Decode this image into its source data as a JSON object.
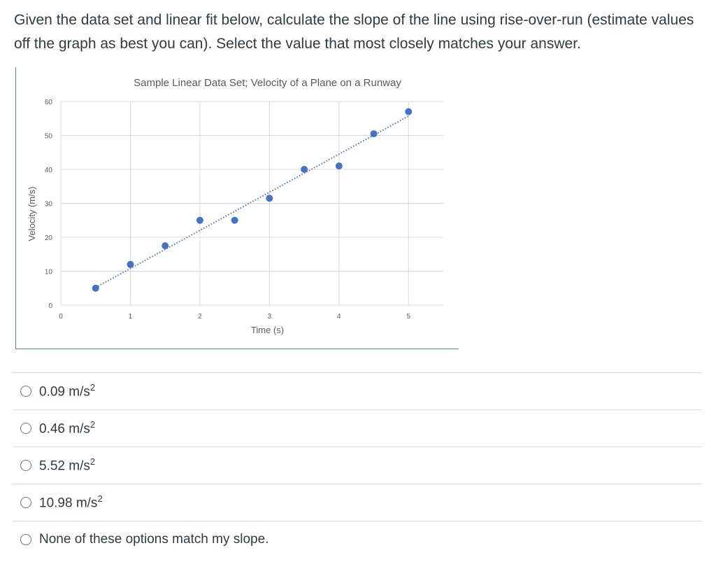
{
  "question": {
    "text": "Given the data set and linear fit below, calculate the slope of the line using rise-over-run (estimate values off the graph as best you can). Select the value that most closely matches your answer."
  },
  "chart_data": {
    "type": "scatter",
    "title": "Sample Linear Data Set; Velocity of a Plane on a Runway",
    "xlabel": "Time (s)",
    "ylabel": "Velocity (m/s)",
    "xlim": [
      0,
      5.5
    ],
    "ylim": [
      0,
      60
    ],
    "x_ticks": [
      "0",
      "1",
      "2",
      "3",
      "4",
      "5"
    ],
    "y_ticks": [
      "0",
      "10",
      "20",
      "30",
      "40",
      "50",
      "60"
    ],
    "grid": true,
    "series": [
      {
        "color": "#4472c4",
        "x": [
          0.5,
          1.0,
          1.5,
          2.0,
          2.5,
          3.0,
          3.5,
          4.0,
          4.5,
          5.0
        ],
        "y": [
          5,
          12,
          17.5,
          25,
          25,
          31.5,
          40,
          41,
          50.5,
          57
        ]
      }
    ],
    "trendline": {
      "type": "linear",
      "style": "dotted",
      "color": "#4472c4",
      "x_range": [
        0.5,
        5.0
      ],
      "y_range": [
        5.2,
        55.7
      ]
    }
  },
  "answers": [
    {
      "value": "0.09 m/s",
      "sup": "2"
    },
    {
      "value": "0.46 m/s",
      "sup": "2"
    },
    {
      "value": "5.52 m/s",
      "sup": "2"
    },
    {
      "value": "10.98 m/s",
      "sup": "2"
    },
    {
      "value": "None of these options match my slope.",
      "sup": ""
    }
  ]
}
